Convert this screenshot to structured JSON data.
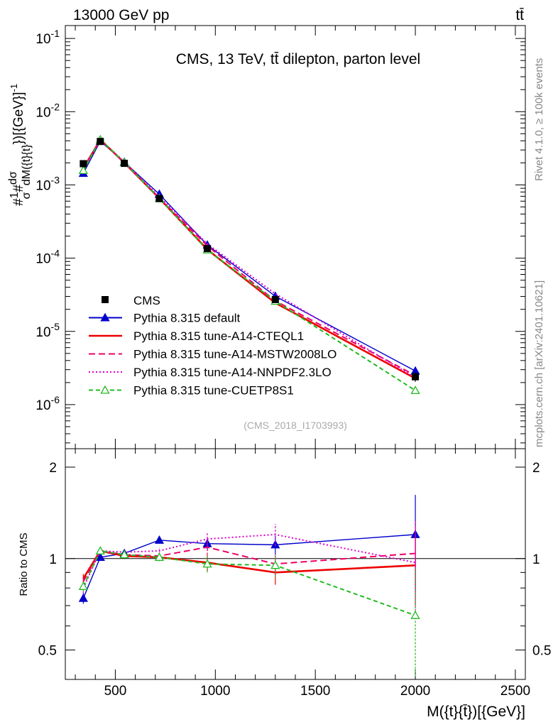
{
  "header": {
    "energy_label": "13000 GeV pp",
    "process_label": "tt̄",
    "side_top": "Rivet 4.1.0, ≥ 100k events",
    "side_bottom": "mcplots.cern.ch [arXiv:2401.10621]"
  },
  "chart_data": {
    "type": "line",
    "title": "CMS, 13 TeV, tt̄ dilepton, parton level",
    "analysis_id": "(CMS_2018_I1703993)",
    "xlabel": "M({t}{t̄})[{GeV}]",
    "ylabel": "#1/σ#dσ/dM({t}{t̄})[{GeV}]^-1",
    "ylabel_parts": {
      "prefix": "#",
      "one": "1",
      "sigma": "σ",
      "mid": "#",
      "dsigma": "dσ",
      "dM": "dM({t}",
      "tbar": "{t}",
      "close": "})[{GeV}]",
      "exp": "-1"
    },
    "ratio_ylabel": "Ratio to CMS",
    "xlim": [
      250,
      2550
    ],
    "ylim": [
      2.5e-07,
      0.15
    ],
    "ratio_ylim": [
      0.4,
      2.3
    ],
    "x_ticks": [
      500,
      1000,
      1500,
      2000,
      2500
    ],
    "x_tick_labels": [
      "500",
      "1000",
      "1500",
      "2000",
      "2500"
    ],
    "y_ticks": [
      {
        "value": 0.1,
        "base": "10",
        "exp": "-1"
      },
      {
        "value": 0.01,
        "base": "10",
        "exp": "-2"
      },
      {
        "value": 0.001,
        "base": "10",
        "exp": "-3"
      },
      {
        "value": 0.0001,
        "base": "10",
        "exp": "-4"
      },
      {
        "value": 1e-05,
        "base": "10",
        "exp": "-5"
      },
      {
        "value": 1e-06,
        "base": "10",
        "exp": "-6"
      }
    ],
    "ratio_ticks": [
      {
        "value": 0.5,
        "label": "0.5"
      },
      {
        "value": 1,
        "label": "1"
      },
      {
        "value": 2,
        "label": "2"
      }
    ],
    "x": [
      340,
      425,
      545,
      720,
      960,
      1300,
      2000
    ],
    "bin_edges": [
      300,
      380,
      470,
      620,
      820,
      1100,
      1500,
      2500
    ],
    "data": {
      "name": "CMS",
      "values": [
        0.00195,
        0.00392,
        0.00197,
        0.00065,
        0.000135,
        2.72e-05,
        2.4e-06
      ],
      "errors": [
        7e-05,
        0.00012,
        6e-05,
        3e-05,
        7e-06,
        2e-06,
        3.5e-07
      ]
    },
    "series": [
      {
        "name": "Pythia 8.315 default",
        "color": "#0000cc",
        "dash": "",
        "marker": "triangle-filled",
        "ratio": [
          0.74,
          1.01,
          1.04,
          1.15,
          1.12,
          1.11,
          1.2
        ],
        "ratio_err": [
          0.03,
          0.02,
          0.02,
          0.03,
          0.06,
          0.08,
          0.42
        ]
      },
      {
        "name": "Pythia 8.315 tune-A14-CTEQL1",
        "color": "#ee0000",
        "dash": "",
        "marker": "none",
        "ratio": [
          0.86,
          1.06,
          1.02,
          1.01,
          0.97,
          0.9,
          0.95
        ],
        "ratio_err": [
          0.03,
          0.02,
          0.02,
          0.03,
          0.06,
          0.08,
          0.25
        ]
      },
      {
        "name": "Pythia 8.315 tune-A14-MSTW2008LO",
        "color": "#ee0066",
        "dash": "9 5",
        "marker": "none",
        "ratio": [
          0.84,
          1.06,
          1.03,
          1.02,
          1.09,
          0.96,
          1.04
        ],
        "ratio_err": [
          0.03,
          0.02,
          0.02,
          0.03,
          0.06,
          0.08,
          0.3
        ]
      },
      {
        "name": "Pythia 8.315 tune-A14-NNPDF2.3LO",
        "color": "#dd00cc",
        "dash": "2 3",
        "marker": "none",
        "ratio": [
          0.8,
          1.06,
          1.05,
          1.06,
          1.16,
          1.2,
          0.97
        ],
        "ratio_err": [
          0.03,
          0.02,
          0.02,
          0.03,
          0.06,
          0.1,
          0.3
        ]
      },
      {
        "name": "Pythia 8.315 tune-CUETP8S1",
        "color": "#22bb22",
        "dash": "6 4",
        "marker": "triangle-open",
        "ratio": [
          0.81,
          1.06,
          1.03,
          1.01,
          0.96,
          0.95,
          0.65
        ],
        "ratio_err": [
          0.03,
          0.02,
          0.02,
          0.03,
          0.06,
          0.08,
          0.28
        ]
      }
    ],
    "legend_position": "bottom-left"
  }
}
